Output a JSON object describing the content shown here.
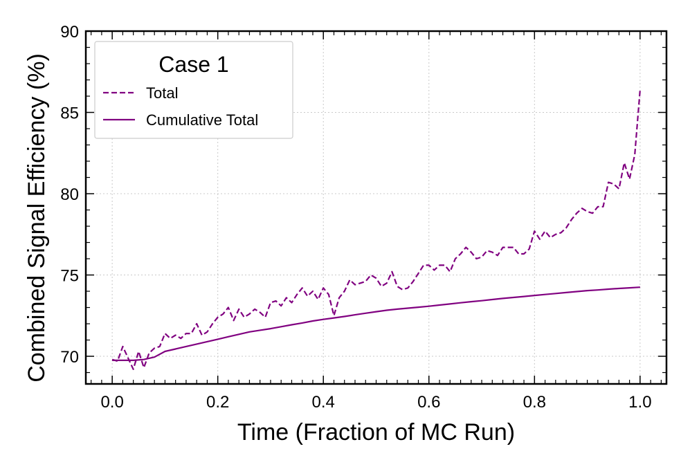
{
  "chart_data": {
    "type": "line",
    "title": "",
    "xlabel": "Time (Fraction of MC Run)",
    "ylabel": "Combined Signal Efficiency (%)",
    "xlim": [
      -0.05,
      1.05
    ],
    "ylim": [
      68.3,
      90
    ],
    "xticks": [
      0.0,
      0.2,
      0.4,
      0.6,
      0.8,
      1.0
    ],
    "xtick_labels": [
      "0.0",
      "0.2",
      "0.4",
      "0.6",
      "0.8",
      "1.0"
    ],
    "yticks": [
      70,
      75,
      80,
      85,
      90
    ],
    "ytick_labels": [
      "70",
      "75",
      "80",
      "85",
      "90"
    ],
    "grid": true,
    "color": "#800080",
    "legend": {
      "title": "Case 1",
      "location": "upper-left",
      "entries": [
        {
          "label": "Total",
          "style": "dashed"
        },
        {
          "label": "Cumulative Total",
          "style": "solid"
        }
      ]
    },
    "series": [
      {
        "name": "Total",
        "style": "dashed",
        "x": [
          0.0,
          0.01,
          0.02,
          0.03,
          0.04,
          0.05,
          0.06,
          0.07,
          0.08,
          0.09,
          0.1,
          0.11,
          0.12,
          0.13,
          0.14,
          0.15,
          0.16,
          0.17,
          0.18,
          0.19,
          0.2,
          0.21,
          0.22,
          0.23,
          0.24,
          0.25,
          0.26,
          0.27,
          0.28,
          0.29,
          0.3,
          0.31,
          0.32,
          0.33,
          0.34,
          0.35,
          0.36,
          0.37,
          0.38,
          0.39,
          0.4,
          0.41,
          0.42,
          0.43,
          0.44,
          0.45,
          0.46,
          0.47,
          0.48,
          0.49,
          0.5,
          0.51,
          0.52,
          0.53,
          0.54,
          0.55,
          0.56,
          0.57,
          0.58,
          0.59,
          0.6,
          0.61,
          0.62,
          0.63,
          0.64,
          0.65,
          0.66,
          0.67,
          0.68,
          0.69,
          0.7,
          0.71,
          0.72,
          0.73,
          0.74,
          0.75,
          0.76,
          0.77,
          0.78,
          0.79,
          0.8,
          0.81,
          0.82,
          0.83,
          0.84,
          0.85,
          0.86,
          0.87,
          0.88,
          0.89,
          0.9,
          0.91,
          0.92,
          0.93,
          0.94,
          0.95,
          0.96,
          0.97,
          0.98,
          0.99,
          1.0
        ],
        "y": [
          69.8,
          69.7,
          70.6,
          69.9,
          69.2,
          70.3,
          69.3,
          70.2,
          70.5,
          70.6,
          71.4,
          71.1,
          71.3,
          71.1,
          71.4,
          71.4,
          72.0,
          71.3,
          71.5,
          72.0,
          72.4,
          72.6,
          73.0,
          72.2,
          72.9,
          72.4,
          72.6,
          72.9,
          72.7,
          72.4,
          73.3,
          73.4,
          73.1,
          73.6,
          73.3,
          73.8,
          74.2,
          73.7,
          74.0,
          73.5,
          74.2,
          73.8,
          72.5,
          73.6,
          74.0,
          74.7,
          74.4,
          74.5,
          74.6,
          75.0,
          74.8,
          74.3,
          74.5,
          75.2,
          74.3,
          74.1,
          74.2,
          74.6,
          75.1,
          75.6,
          75.6,
          75.3,
          75.6,
          75.6,
          75.2,
          76.0,
          76.3,
          76.7,
          76.4,
          76.0,
          76.1,
          76.5,
          76.4,
          76.2,
          76.7,
          76.7,
          76.7,
          76.3,
          76.3,
          76.6,
          77.7,
          77.2,
          77.7,
          77.3,
          77.5,
          77.6,
          77.9,
          78.4,
          78.8,
          79.1,
          78.9,
          78.8,
          79.2,
          79.2,
          80.7,
          80.6,
          80.3,
          81.9,
          80.9,
          82.4,
          86.4
        ]
      },
      {
        "name": "Cumulative Total",
        "style": "solid",
        "x": [
          0.0,
          0.02,
          0.04,
          0.06,
          0.08,
          0.1,
          0.12,
          0.14,
          0.16,
          0.18,
          0.2,
          0.22,
          0.24,
          0.26,
          0.28,
          0.3,
          0.32,
          0.34,
          0.36,
          0.38,
          0.4,
          0.42,
          0.44,
          0.46,
          0.48,
          0.5,
          0.52,
          0.54,
          0.56,
          0.58,
          0.6,
          0.62,
          0.64,
          0.66,
          0.68,
          0.7,
          0.72,
          0.74,
          0.76,
          0.78,
          0.8,
          0.82,
          0.84,
          0.86,
          0.88,
          0.9,
          0.92,
          0.94,
          0.96,
          0.98,
          1.0
        ],
        "y": [
          69.75,
          69.75,
          69.75,
          69.8,
          69.95,
          70.3,
          70.45,
          70.6,
          70.75,
          70.9,
          71.05,
          71.2,
          71.35,
          71.5,
          71.6,
          71.7,
          71.82,
          71.94,
          72.05,
          72.17,
          72.27,
          72.36,
          72.45,
          72.55,
          72.65,
          72.74,
          72.83,
          72.9,
          72.96,
          73.02,
          73.08,
          73.15,
          73.22,
          73.29,
          73.36,
          73.42,
          73.49,
          73.56,
          73.62,
          73.68,
          73.74,
          73.8,
          73.86,
          73.92,
          73.98,
          74.04,
          74.08,
          74.13,
          74.17,
          74.21,
          74.25
        ]
      }
    ]
  }
}
